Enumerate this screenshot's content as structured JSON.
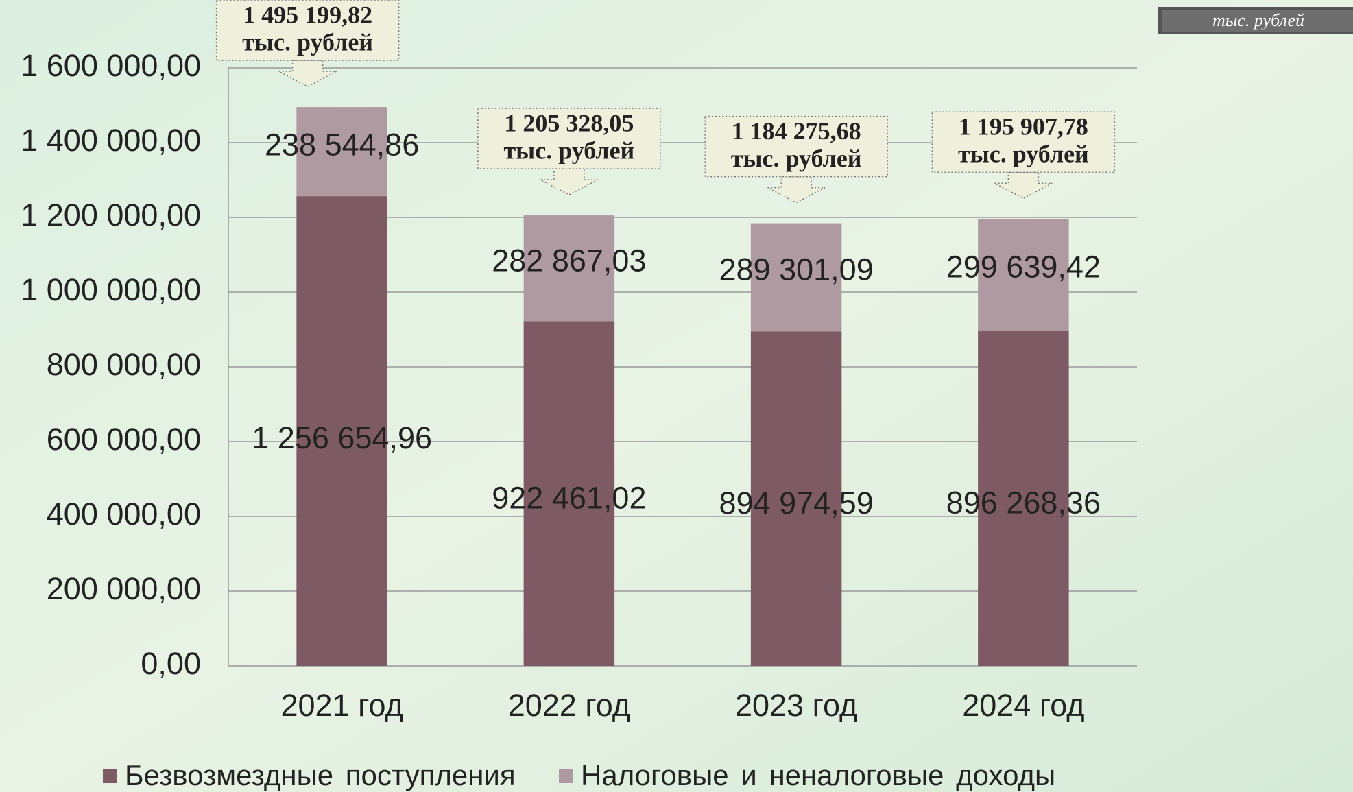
{
  "chart_data": {
    "type": "stacked-bar",
    "unit_label": "тыс. рублей",
    "categories": [
      "2021 год",
      "2022 год",
      "2023 год",
      "2024 год"
    ],
    "series": [
      {
        "name": "Безвозмездные поступления",
        "color": "#7d5a64",
        "values": [
          1256654.96,
          922461.02,
          894974.59,
          896268.36
        ],
        "value_labels": [
          "1 256 654,96",
          "922 461,02",
          "894 974,59",
          "896 268,36"
        ]
      },
      {
        "name": "Налоговые и неналоговые доходы",
        "color": "#b09aa2",
        "values": [
          238544.86,
          282867.03,
          289301.09,
          299639.42
        ],
        "value_labels": [
          "238 544,86",
          "282 867,03",
          "289 301,09",
          "299 639,42"
        ]
      }
    ],
    "annotations": [
      {
        "value": 1495199.82,
        "label": "1 495 199,82",
        "unit": "тыс. рублей"
      },
      {
        "value": 1205328.05,
        "label": "1 205 328,05",
        "unit": "тыс. рублей"
      },
      {
        "value": 1184275.68,
        "label": "1 184 275,68",
        "unit": "тыс. рублей"
      },
      {
        "value": 1195907.78,
        "label": "1 195 907,78",
        "unit": "тыс. рублей"
      }
    ],
    "ylim": [
      0,
      1600000
    ],
    "yticks": [
      {
        "value": 0,
        "label": "0,00"
      },
      {
        "value": 200000,
        "label": "200 000,00"
      },
      {
        "value": 400000,
        "label": "400 000,00"
      },
      {
        "value": 600000,
        "label": "600 000,00"
      },
      {
        "value": 800000,
        "label": "800 000,00"
      },
      {
        "value": 1000000,
        "label": "1 000 000,00"
      },
      {
        "value": 1200000,
        "label": "1 200 000,00"
      },
      {
        "value": 1400000,
        "label": "1 400 000,00"
      },
      {
        "value": 1600000,
        "label": "1 600 000,00"
      }
    ],
    "grid": true
  }
}
